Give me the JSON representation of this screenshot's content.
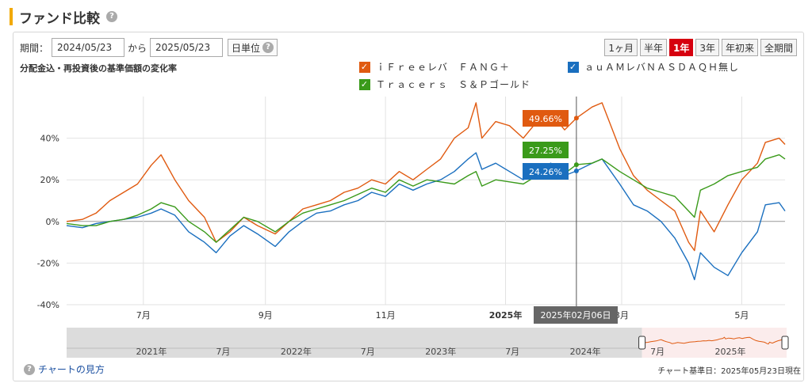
{
  "page": {
    "title": "ファンド比較",
    "period_label": "期間：",
    "date_from": "2024/05/23",
    "from_to_label": "から",
    "date_to": "2025/05/23",
    "unit_label": "日単位",
    "range_buttons": [
      "1ヶ月",
      "半年",
      "1年",
      "3年",
      "年初来",
      "全期間"
    ],
    "active_range": "1年",
    "subtitle": "分配金込・再投資後の基準価額の変化率",
    "help_link": "チャートの見方",
    "base_date": "チャート基準日：2025年05月23日現在"
  },
  "chart_data": {
    "type": "line",
    "ylim": [
      -40,
      60
    ],
    "yticks": [
      -40,
      -20,
      0,
      20,
      40
    ],
    "ytick_labels": [
      "-40%",
      "-20%",
      "0%",
      "20%",
      "40%"
    ],
    "x_range": [
      "2024-05-23",
      "2025-05-23"
    ],
    "xtick_labels": [
      {
        "date": "2024-07-01",
        "label": "7月"
      },
      {
        "date": "2024-09-01",
        "label": "9月"
      },
      {
        "date": "2024-11-01",
        "label": "11月"
      },
      {
        "date": "2025-01-01",
        "label": "2025年"
      },
      {
        "date": "2025-03-01",
        "label": "3月"
      },
      {
        "date": "2025-05-01",
        "label": "5月"
      }
    ],
    "grid": true,
    "legend_position": "top",
    "series": [
      {
        "name": "ｉＦｒｅｅレバ　ＦＡＮＧ＋",
        "color": "#e05a10",
        "points": [
          [
            "2024-05-23",
            0
          ],
          [
            "2024-05-31",
            1
          ],
          [
            "2024-06-07",
            4
          ],
          [
            "2024-06-14",
            10
          ],
          [
            "2024-06-21",
            14
          ],
          [
            "2024-06-28",
            18
          ],
          [
            "2024-07-05",
            27
          ],
          [
            "2024-07-10",
            32
          ],
          [
            "2024-07-17",
            20
          ],
          [
            "2024-07-24",
            10
          ],
          [
            "2024-08-01",
            2
          ],
          [
            "2024-08-07",
            -10
          ],
          [
            "2024-08-14",
            -5
          ],
          [
            "2024-08-21",
            2
          ],
          [
            "2024-08-28",
            -2
          ],
          [
            "2024-09-06",
            -6
          ],
          [
            "2024-09-13",
            0
          ],
          [
            "2024-09-20",
            6
          ],
          [
            "2024-09-27",
            8
          ],
          [
            "2024-10-04",
            10
          ],
          [
            "2024-10-11",
            14
          ],
          [
            "2024-10-18",
            16
          ],
          [
            "2024-10-25",
            20
          ],
          [
            "2024-11-01",
            18
          ],
          [
            "2024-11-08",
            24
          ],
          [
            "2024-11-15",
            20
          ],
          [
            "2024-11-22",
            25
          ],
          [
            "2024-11-29",
            30
          ],
          [
            "2024-12-06",
            40
          ],
          [
            "2024-12-13",
            45
          ],
          [
            "2024-12-17",
            57
          ],
          [
            "2024-12-20",
            40
          ],
          [
            "2024-12-27",
            48
          ],
          [
            "2025-01-03",
            46
          ],
          [
            "2025-01-10",
            40
          ],
          [
            "2025-01-17",
            48
          ],
          [
            "2025-01-24",
            52
          ],
          [
            "2025-01-31",
            44
          ],
          [
            "2025-02-06",
            49.66
          ],
          [
            "2025-02-14",
            55
          ],
          [
            "2025-02-19",
            57
          ],
          [
            "2025-02-28",
            35
          ],
          [
            "2025-03-07",
            22
          ],
          [
            "2025-03-14",
            15
          ],
          [
            "2025-03-21",
            10
          ],
          [
            "2025-03-28",
            5
          ],
          [
            "2025-04-04",
            -10
          ],
          [
            "2025-04-07",
            -14
          ],
          [
            "2025-04-10",
            5
          ],
          [
            "2025-04-17",
            -5
          ],
          [
            "2025-04-24",
            8
          ],
          [
            "2025-05-01",
            20
          ],
          [
            "2025-05-09",
            28
          ],
          [
            "2025-05-13",
            38
          ],
          [
            "2025-05-20",
            40
          ],
          [
            "2025-05-23",
            37
          ]
        ]
      },
      {
        "name": "ａｕＡＭレバＮＡＳＤＡＱＨ無し",
        "color": "#1a6fbf",
        "points": [
          [
            "2024-05-23",
            -2
          ],
          [
            "2024-05-31",
            -3
          ],
          [
            "2024-06-07",
            -1
          ],
          [
            "2024-06-14",
            0
          ],
          [
            "2024-06-21",
            1
          ],
          [
            "2024-06-28",
            2
          ],
          [
            "2024-07-05",
            4
          ],
          [
            "2024-07-10",
            6
          ],
          [
            "2024-07-17",
            3
          ],
          [
            "2024-07-24",
            -5
          ],
          [
            "2024-08-01",
            -10
          ],
          [
            "2024-08-07",
            -15
          ],
          [
            "2024-08-14",
            -7
          ],
          [
            "2024-08-21",
            -2
          ],
          [
            "2024-08-28",
            -6
          ],
          [
            "2024-09-06",
            -12
          ],
          [
            "2024-09-13",
            -5
          ],
          [
            "2024-09-20",
            0
          ],
          [
            "2024-09-27",
            4
          ],
          [
            "2024-10-04",
            5
          ],
          [
            "2024-10-11",
            8
          ],
          [
            "2024-10-18",
            10
          ],
          [
            "2024-10-25",
            14
          ],
          [
            "2024-11-01",
            12
          ],
          [
            "2024-11-08",
            18
          ],
          [
            "2024-11-15",
            15
          ],
          [
            "2024-11-22",
            18
          ],
          [
            "2024-11-29",
            20
          ],
          [
            "2024-12-06",
            24
          ],
          [
            "2024-12-13",
            30
          ],
          [
            "2024-12-17",
            33
          ],
          [
            "2024-12-20",
            25
          ],
          [
            "2024-12-27",
            28
          ],
          [
            "2025-01-03",
            24
          ],
          [
            "2025-01-10",
            20
          ],
          [
            "2025-01-17",
            25
          ],
          [
            "2025-01-24",
            28
          ],
          [
            "2025-01-31",
            22
          ],
          [
            "2025-02-06",
            24.26
          ],
          [
            "2025-02-14",
            28
          ],
          [
            "2025-02-19",
            30
          ],
          [
            "2025-02-28",
            18
          ],
          [
            "2025-03-07",
            8
          ],
          [
            "2025-03-14",
            5
          ],
          [
            "2025-03-21",
            0
          ],
          [
            "2025-03-28",
            -8
          ],
          [
            "2025-04-04",
            -20
          ],
          [
            "2025-04-07",
            -28
          ],
          [
            "2025-04-10",
            -15
          ],
          [
            "2025-04-17",
            -22
          ],
          [
            "2025-04-24",
            -26
          ],
          [
            "2025-05-01",
            -15
          ],
          [
            "2025-05-09",
            -5
          ],
          [
            "2025-05-13",
            8
          ],
          [
            "2025-05-20",
            9
          ],
          [
            "2025-05-23",
            5
          ]
        ]
      },
      {
        "name": "Ｔｒａｃｅｒｓ　Ｓ＆Ｐゴールド",
        "color": "#3a9a1a",
        "points": [
          [
            "2024-05-23",
            -1
          ],
          [
            "2024-05-31",
            -2
          ],
          [
            "2024-06-07",
            -2
          ],
          [
            "2024-06-14",
            0
          ],
          [
            "2024-06-21",
            1
          ],
          [
            "2024-06-28",
            3
          ],
          [
            "2024-07-05",
            6
          ],
          [
            "2024-07-10",
            9
          ],
          [
            "2024-07-17",
            7
          ],
          [
            "2024-07-24",
            0
          ],
          [
            "2024-08-01",
            -5
          ],
          [
            "2024-08-07",
            -10
          ],
          [
            "2024-08-14",
            -4
          ],
          [
            "2024-08-21",
            2
          ],
          [
            "2024-08-28",
            0
          ],
          [
            "2024-09-06",
            -5
          ],
          [
            "2024-09-13",
            0
          ],
          [
            "2024-09-20",
            4
          ],
          [
            "2024-09-27",
            6
          ],
          [
            "2024-10-04",
            8
          ],
          [
            "2024-10-11",
            10
          ],
          [
            "2024-10-18",
            13
          ],
          [
            "2024-10-25",
            16
          ],
          [
            "2024-11-01",
            14
          ],
          [
            "2024-11-08",
            20
          ],
          [
            "2024-11-15",
            17
          ],
          [
            "2024-11-22",
            20
          ],
          [
            "2024-11-29",
            19
          ],
          [
            "2024-12-06",
            18
          ],
          [
            "2024-12-13",
            22
          ],
          [
            "2024-12-17",
            24
          ],
          [
            "2024-12-20",
            17
          ],
          [
            "2024-12-27",
            20
          ],
          [
            "2025-01-03",
            19
          ],
          [
            "2025-01-10",
            18
          ],
          [
            "2025-01-17",
            22
          ],
          [
            "2025-01-24",
            26
          ],
          [
            "2025-01-31",
            23
          ],
          [
            "2025-02-06",
            27.25
          ],
          [
            "2025-02-14",
            28
          ],
          [
            "2025-02-19",
            30
          ],
          [
            "2025-02-28",
            24
          ],
          [
            "2025-03-07",
            20
          ],
          [
            "2025-03-14",
            16
          ],
          [
            "2025-03-21",
            14
          ],
          [
            "2025-03-28",
            12
          ],
          [
            "2025-04-04",
            5
          ],
          [
            "2025-04-07",
            2
          ],
          [
            "2025-04-10",
            15
          ],
          [
            "2025-04-17",
            18
          ],
          [
            "2025-04-24",
            22
          ],
          [
            "2025-05-01",
            24
          ],
          [
            "2025-05-09",
            26
          ],
          [
            "2025-05-13",
            30
          ],
          [
            "2025-05-20",
            32
          ],
          [
            "2025-05-23",
            30
          ]
        ]
      }
    ],
    "crosshair": {
      "date": "2025-02-06",
      "label": "2025年02月06日",
      "values": [
        {
          "series": "ｉＦｒｅｅレバ　ＦＡＮＧ＋",
          "label": "49.66%",
          "value": 49.66
        },
        {
          "series": "Ｔｒａｃｅｒｓ　Ｓ＆Ｐゴールド",
          "label": "27.25%",
          "value": 27.25
        },
        {
          "series": "ａｕＡＭレバＮＡＳＤＡＱＨ無し",
          "label": "24.26%",
          "value": 24.26
        }
      ]
    },
    "navigator": {
      "x_range": [
        "2020-06-01",
        "2025-05-23"
      ],
      "xtick_labels": [
        {
          "date": "2021-01-01",
          "label": "2021年"
        },
        {
          "date": "2021-07-01",
          "label": "7月"
        },
        {
          "date": "2022-01-01",
          "label": "2022年"
        },
        {
          "date": "2022-07-01",
          "label": "7月"
        },
        {
          "date": "2023-01-01",
          "label": "2023年"
        },
        {
          "date": "2023-07-01",
          "label": "7月"
        },
        {
          "date": "2024-01-01",
          "label": "2024年"
        },
        {
          "date": "2024-07-01",
          "label": "7月"
        },
        {
          "date": "2025-01-01",
          "label": "2025年"
        }
      ],
      "selected_range": [
        "2024-05-23",
        "2025-05-23"
      ]
    }
  }
}
